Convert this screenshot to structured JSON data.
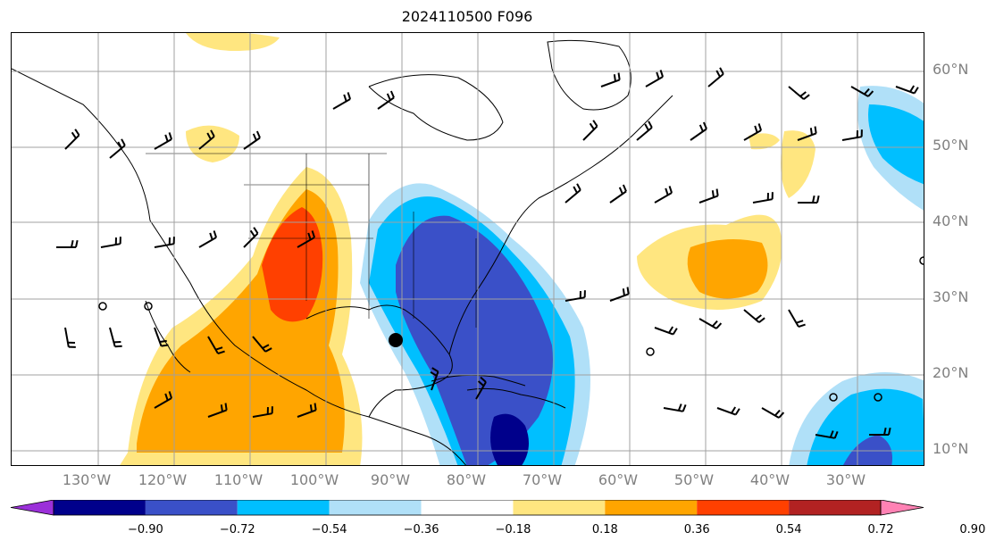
{
  "title": "2024110500 F096",
  "latitude_labels": [
    "60°N",
    "50°N",
    "40°N",
    "30°N",
    "20°N",
    "10°N"
  ],
  "longitude_labels": [
    "130°W",
    "120°W",
    "110°W",
    "100°W",
    "90°W",
    "80°W",
    "70°W",
    "60°W",
    "50°W",
    "40°W",
    "30°W"
  ],
  "colorbar": {
    "ticks": [
      "−0.90",
      "−0.72",
      "−0.54",
      "−0.36",
      "−0.18",
      "0.18",
      "0.36",
      "0.54",
      "0.72",
      "0.90"
    ],
    "colors": [
      "#9b30d9",
      "#00008b",
      "#3a50c8",
      "#00bfff",
      "#b0e0f8",
      "#ffffff",
      "#ffe680",
      "#ffa500",
      "#ff4000",
      "#b22222",
      "#ff82b4"
    ],
    "extend": "both"
  },
  "colors": {
    "grid": "#a0a0a0",
    "coast": "#000000",
    "label": "#808080"
  },
  "markers": {
    "hurricane_symbol": "filled-circle-icon",
    "calm_symbol": "open-circle-icon"
  }
}
